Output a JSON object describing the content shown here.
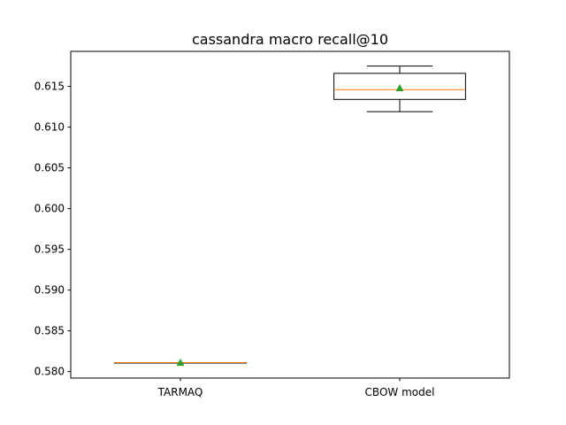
{
  "chart_data": {
    "type": "box",
    "title": "cassandra macro recall@10",
    "xlabel": "",
    "ylabel": "",
    "ylim": [
      0.5792,
      0.6193
    ],
    "yticks": [
      0.58,
      0.585,
      0.59,
      0.595,
      0.6,
      0.605,
      0.61,
      0.615
    ],
    "ytick_labels": [
      "0.580",
      "0.585",
      "0.590",
      "0.595",
      "0.600",
      "0.605",
      "0.610",
      "0.615"
    ],
    "categories": [
      "TARMAQ",
      "CBOW model"
    ],
    "boxes": [
      {
        "name": "TARMAQ",
        "whislo": 0.5811,
        "q1": 0.5811,
        "med": 0.5811,
        "q3": 0.5811,
        "whishi": 0.5811,
        "mean": 0.5811
      },
      {
        "name": "CBOW model",
        "whislo": 0.6119,
        "q1": 0.6134,
        "med": 0.6146,
        "q3": 0.6166,
        "whishi": 0.6175,
        "mean": 0.6148
      }
    ],
    "grid": false,
    "colors": {
      "box": "#000000",
      "median": "#ff7f0e",
      "mean": "#2ca02c"
    }
  }
}
